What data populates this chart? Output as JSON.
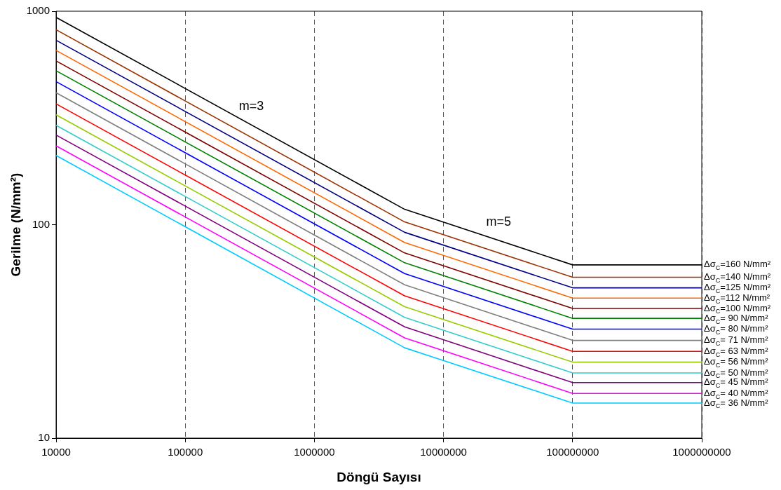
{
  "chart_data": {
    "type": "line",
    "xlabel": "Döngü Sayısı",
    "ylabel": "Gerilme (N/mm²)",
    "log": "xy",
    "xlim": [
      10000,
      1000000000
    ],
    "ylim": [
      10,
      1000
    ],
    "xticks": [
      10000,
      100000,
      1000000,
      10000000,
      100000000,
      1000000000
    ],
    "yticks": [
      10,
      100,
      1000
    ],
    "grid": "x",
    "marker": "none",
    "line_style": "solid",
    "x": [
      10000,
      5000000,
      100000000,
      1000000000
    ],
    "series": [
      {
        "name": "Δσ$_{C}$=160 N/mm²",
        "color": "#000000",
        "values": [
          936,
          118,
          64.8,
          64.8
        ]
      },
      {
        "name": "Δσ$_{C}$=140 N/mm²",
        "color": "#993300",
        "values": [
          819,
          103,
          56.7,
          56.7
        ]
      },
      {
        "name": "Δσ$_{C}$=125 N/mm²",
        "color": "#000080",
        "values": [
          731,
          92.1,
          50.6,
          50.6
        ]
      },
      {
        "name": "Δσ$_{C}$=112 N/mm²",
        "color": "#ff6600",
        "values": [
          655,
          82.5,
          45.3,
          45.3
        ]
      },
      {
        "name": "Δσ$_{C}$=100 N/mm²",
        "color": "#800000",
        "values": [
          585,
          73.7,
          40.5,
          40.5
        ]
      },
      {
        "name": "Δσ$_{C}$= 90 N/mm²",
        "color": "#008000",
        "values": [
          526,
          66.3,
          36.4,
          36.4
        ]
      },
      {
        "name": "Δσ$_{C}$= 80 N/mm²",
        "color": "#0000ff",
        "values": [
          468,
          59.0,
          32.4,
          32.4
        ]
      },
      {
        "name": "Δσ$_{C}$= 71 N/mm²",
        "color": "#808080",
        "values": [
          415,
          52.3,
          28.7,
          28.7
        ]
      },
      {
        "name": "Δσ$_{C}$= 63 N/mm²",
        "color": "#ff0000",
        "values": [
          368,
          46.4,
          25.5,
          25.5
        ]
      },
      {
        "name": "Δσ$_{C}$= 56 N/mm²",
        "color": "#99cc00",
        "values": [
          327,
          41.3,
          22.7,
          22.7
        ]
      },
      {
        "name": "Δσ$_{C}$= 50 N/mm²",
        "color": "#33cccc",
        "values": [
          292,
          36.8,
          20.2,
          20.2
        ]
      },
      {
        "name": "Δσ$_{C}$= 45 N/mm²",
        "color": "#800080",
        "values": [
          263,
          33.2,
          18.2,
          18.2
        ]
      },
      {
        "name": "Δσ$_{C}$= 40 N/mm²",
        "color": "#ff00ff",
        "values": [
          234,
          29.5,
          16.2,
          16.2
        ]
      },
      {
        "name": "Δσ$_{C}$= 36 N/mm²",
        "color": "#00ccff",
        "values": [
          211,
          26.5,
          14.6,
          14.6
        ]
      }
    ],
    "annotations": [
      "m=3",
      "m=5"
    ]
  }
}
